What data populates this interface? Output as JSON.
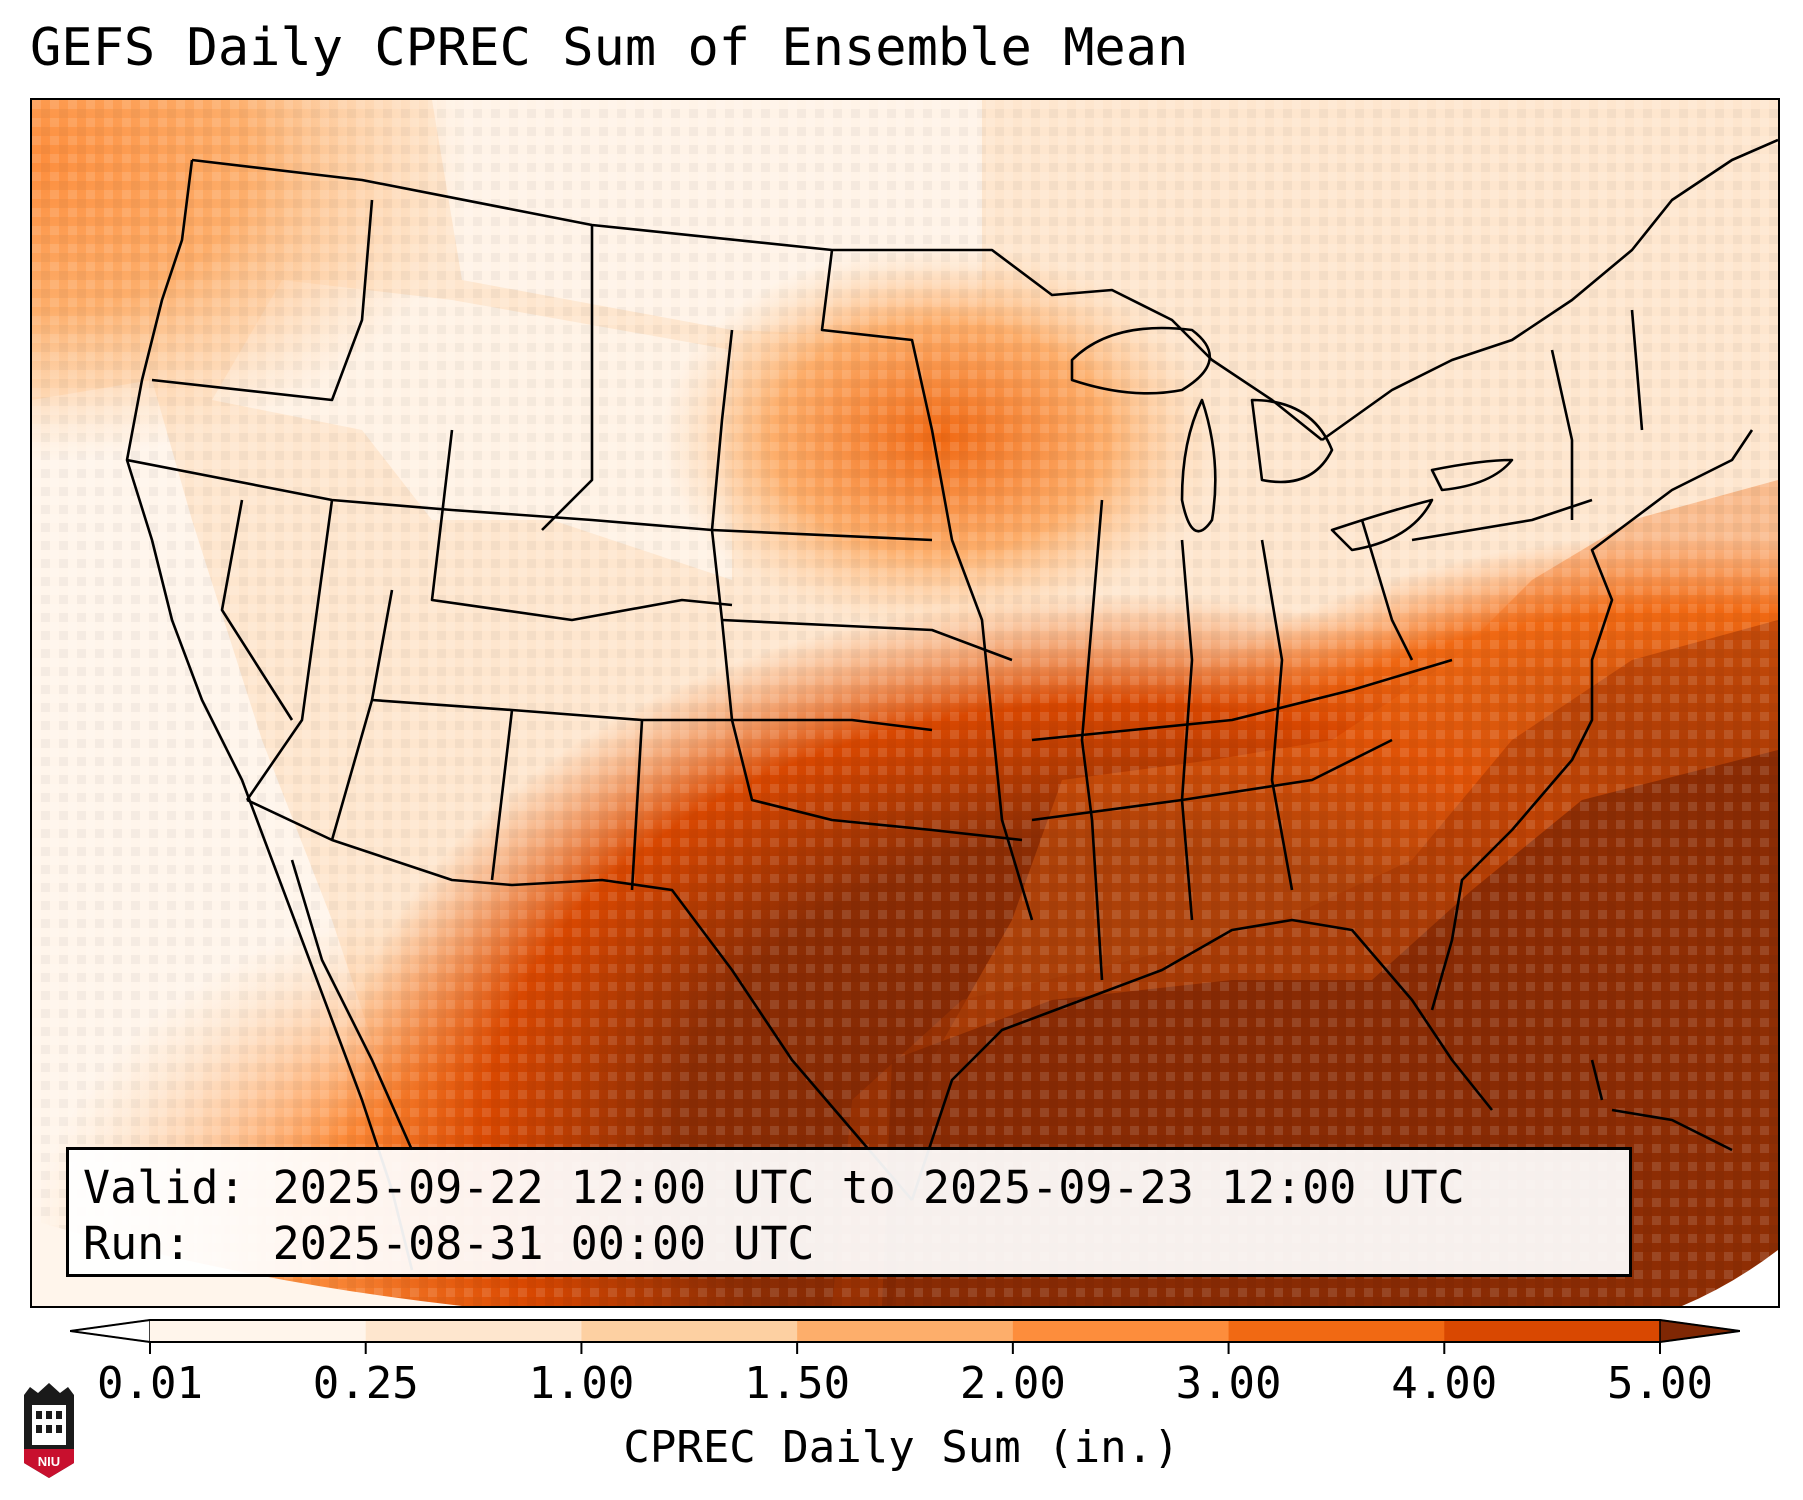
{
  "title": "GEFS Daily CPREC Sum of Ensemble Mean",
  "info": {
    "valid_label": "Valid:",
    "valid_value": "2025-09-22 12:00 UTC to 2025-09-23 12:00 UTC",
    "run_label": "Run:",
    "run_value": "2025-08-31 00:00 UTC"
  },
  "colorbar": {
    "label": "CPREC Daily Sum (in.)",
    "ticks": [
      "0.01",
      "0.25",
      "1.00",
      "1.50",
      "2.00",
      "3.00",
      "4.00",
      "5.00"
    ],
    "colors": [
      "#fff5eb",
      "#fee6ce",
      "#fdd0a2",
      "#fdae6b",
      "#fd8d3c",
      "#f16913",
      "#d94801",
      "#a63603",
      "#7f2704"
    ],
    "under_color": "#ffffff",
    "over_color": "#7f2704"
  },
  "map": {
    "region": "Continental United States",
    "field": "CPREC",
    "border_color": "#000000"
  },
  "logo": {
    "text": "NIU"
  }
}
